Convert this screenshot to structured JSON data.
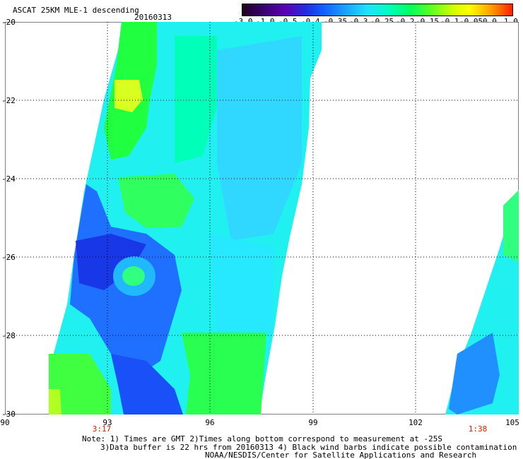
{
  "header": {
    "title": "ASCAT 25KM MLE-1 descending",
    "date": "20160313"
  },
  "colorbar": {
    "labels": [
      "-3.0",
      "-1.0",
      "-0.5",
      "-0.4",
      "-0.35",
      "-0.3",
      "-0.25",
      "-0.2",
      "-0.15",
      "-0.1",
      "-0.05",
      "0.0",
      "1.0"
    ]
  },
  "axes": {
    "y_ticks": [
      "-20",
      "-22",
      "-24",
      "-26",
      "-28",
      "-30"
    ],
    "x_ticks": [
      "90",
      "93",
      "96",
      "99",
      "102",
      "105"
    ],
    "swath_times": [
      "3:17",
      "1:38"
    ]
  },
  "notes": {
    "line1": "Note: 1) Times are GMT 2)Times along bottom correspond to measurement at -25S",
    "line2": "3)Data buffer is 22 hrs from 20160313 4) Black wind barbs indicate possible contamination",
    "line3": "NOAA/NESDIS/Center for Satellite Applications and Research"
  },
  "colors": {
    "deep_blue": "#1830e8",
    "blue": "#2070ff",
    "light_blue": "#20b8ff",
    "cyan": "#20f0f0",
    "aqua_green": "#00ffb0",
    "green": "#20ff40",
    "yellow_green": "#a0ff10",
    "yellow": "#e8ff20"
  }
}
